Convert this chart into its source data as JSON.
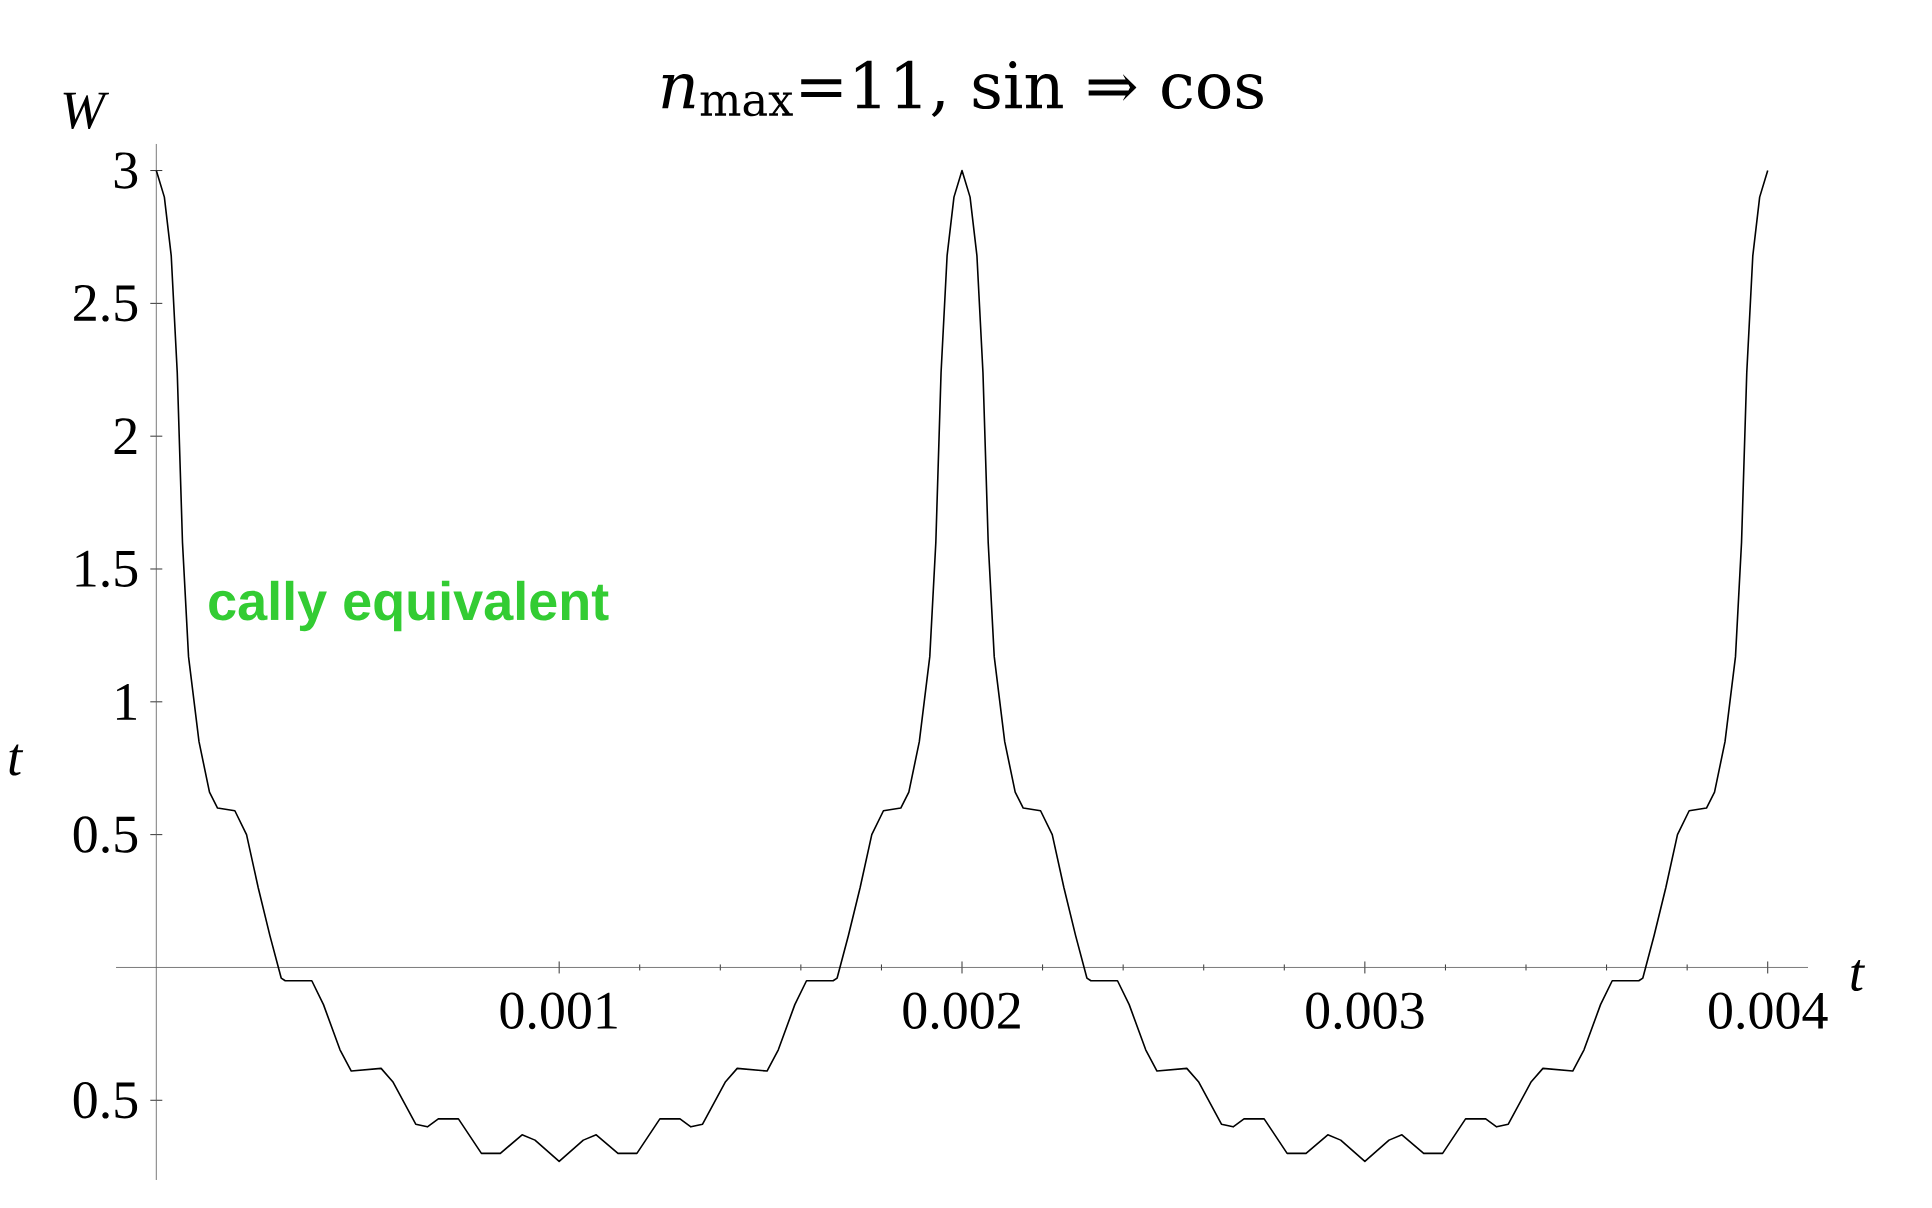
{
  "chart_data": {
    "type": "line",
    "title": "*n*$_{max}$=11, sin ⇒ cos",
    "xlabel": "t",
    "ylabel": "W",
    "annotations": [
      "cally equivalent",
      "t"
    ],
    "xlim": [
      -0.0001,
      0.0041
    ],
    "ylim": [
      -0.8,
      3.1
    ],
    "xticks": [
      0.001,
      0.002,
      0.003,
      0.004
    ],
    "yticks": [
      {
        "value": -0.5,
        "label": "0.5"
      },
      0.5,
      1,
      1.5,
      2,
      2.5,
      3
    ],
    "grid": false,
    "marker": "none",
    "line_style": "solid",
    "series": [
      {
        "color": "#000000",
        "x": [
          0,
          2e-05,
          3.7e-05,
          5.2e-05,
          6.5e-05,
          8e-05,
          0.000106,
          0.000132,
          0.000152,
          0.000195,
          0.000224,
          0.000253,
          0.000282,
          0.00031,
          0.00032,
          0.000386,
          0.000415,
          0.000456,
          0.000484,
          0.000558,
          0.000587,
          0.000644,
          0.000673,
          0.0007,
          0.00075,
          0.000807,
          0.000854,
          0.000908,
          0.00094,
          0.001,
          0.00106,
          0.001092,
          0.001146,
          0.001193,
          0.00125,
          0.0013,
          0.001327,
          0.001356,
          0.001413,
          0.001442,
          0.001516,
          0.001544,
          0.001585,
          0.001614,
          0.00168,
          0.00169,
          0.001718,
          0.001747,
          0.001776,
          0.001805,
          0.001848,
          0.001868,
          0.001894,
          0.00192,
          0.001935,
          0.001948,
          0.001963,
          0.00198,
          0.002,
          0.00202,
          0.002037,
          0.002052,
          0.002065,
          0.00208,
          0.002106,
          0.002132,
          0.002152,
          0.002195,
          0.002224,
          0.002253,
          0.002282,
          0.00231,
          0.00232,
          0.002386,
          0.002415,
          0.002456,
          0.002484,
          0.002558,
          0.002587,
          0.002644,
          0.002673,
          0.0027,
          0.00275,
          0.002807,
          0.002854,
          0.002908,
          0.00294,
          0.003,
          0.00306,
          0.003092,
          0.003146,
          0.003193,
          0.00325,
          0.0033,
          0.003327,
          0.003356,
          0.003413,
          0.003442,
          0.003516,
          0.003544,
          0.003585,
          0.003614,
          0.00368,
          0.00369,
          0.003718,
          0.003747,
          0.003776,
          0.003805,
          0.003848,
          0.003868,
          0.003894,
          0.00392,
          0.003935,
          0.003948,
          0.003963,
          0.00398,
          0.004
        ],
        "values": [
          3.0,
          2.9,
          2.68,
          2.24,
          1.6,
          1.17,
          0.85,
          0.66,
          0.6,
          0.59,
          0.5,
          0.3,
          0.12,
          -0.04,
          -0.05,
          -0.05,
          -0.14,
          -0.31,
          -0.39,
          -0.38,
          -0.43,
          -0.59,
          -0.6,
          -0.57,
          -0.57,
          -0.7,
          -0.7,
          -0.63,
          -0.65,
          -0.73,
          -0.65,
          -0.63,
          -0.7,
          -0.7,
          -0.57,
          -0.57,
          -0.6,
          -0.59,
          -0.43,
          -0.38,
          -0.39,
          -0.31,
          -0.14,
          -0.05,
          -0.05,
          -0.04,
          0.12,
          0.3,
          0.5,
          0.59,
          0.6,
          0.66,
          0.85,
          1.17,
          1.6,
          2.24,
          2.68,
          2.9,
          3.0,
          2.9,
          2.68,
          2.24,
          1.6,
          1.17,
          0.85,
          0.66,
          0.6,
          0.59,
          0.5,
          0.3,
          0.12,
          -0.04,
          -0.05,
          -0.05,
          -0.14,
          -0.31,
          -0.39,
          -0.38,
          -0.43,
          -0.59,
          -0.6,
          -0.57,
          -0.57,
          -0.7,
          -0.7,
          -0.63,
          -0.65,
          -0.73,
          -0.65,
          -0.63,
          -0.7,
          -0.7,
          -0.57,
          -0.57,
          -0.6,
          -0.59,
          -0.43,
          -0.38,
          -0.39,
          -0.31,
          -0.14,
          -0.05,
          -0.05,
          -0.04,
          0.12,
          0.3,
          0.5,
          0.59,
          0.6,
          0.66,
          0.85,
          1.17,
          1.6,
          2.24,
          2.68,
          2.9,
          3.0
        ]
      }
    ]
  }
}
